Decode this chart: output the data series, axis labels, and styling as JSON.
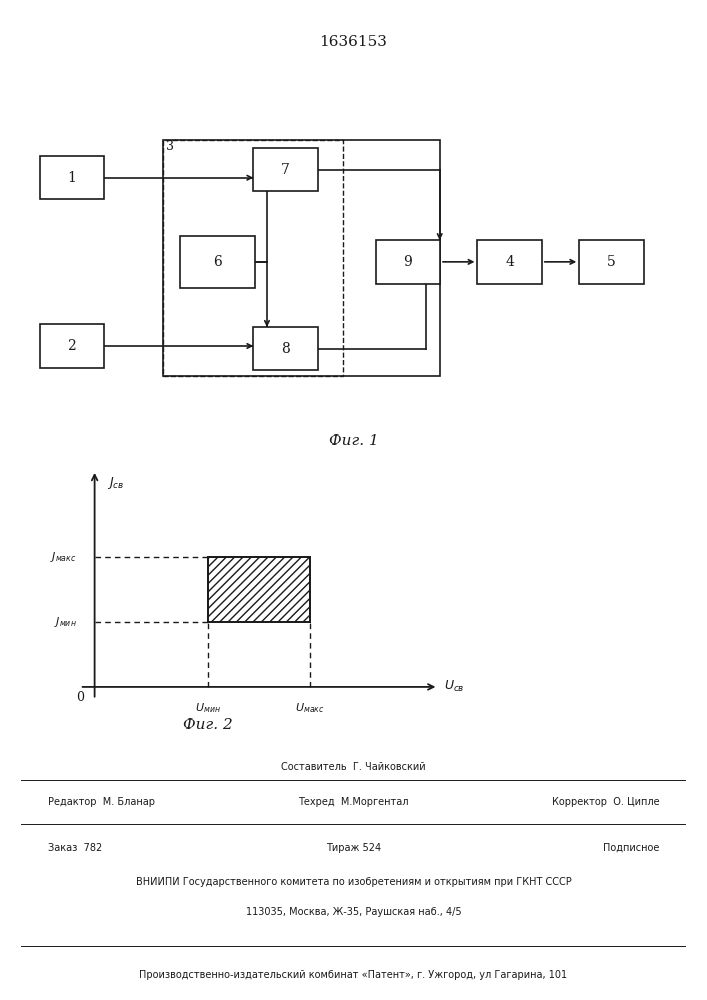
{
  "title": "1636153",
  "fig1_caption": "Фиг. 1",
  "fig2_caption": "Фиг. 2",
  "footer_line1_center": "Составитель  Г. Чайковский",
  "footer_line2_left": "Редактор  М. Бланар",
  "footer_line2_center": "Техред  М.Моргентал",
  "footer_line2_right": "Корректор  О. Ципле",
  "footer_line3_left": "Заказ  782",
  "footer_line3_center": "Тираж 524",
  "footer_line3_right": "Подписное",
  "footer_line4": "ВНИИПИ Государственного комитета по изобретениям и открытиям при ГКНТ СССР",
  "footer_line5": "113035, Москва, Ж-35, Раушская наб., 4/5",
  "footer_line6": "Производственно-издательский комбинат «Патент», г. Ужгород, ул Гагарина, 101",
  "bg_color": "#ffffff",
  "line_color": "#1a1a1a"
}
